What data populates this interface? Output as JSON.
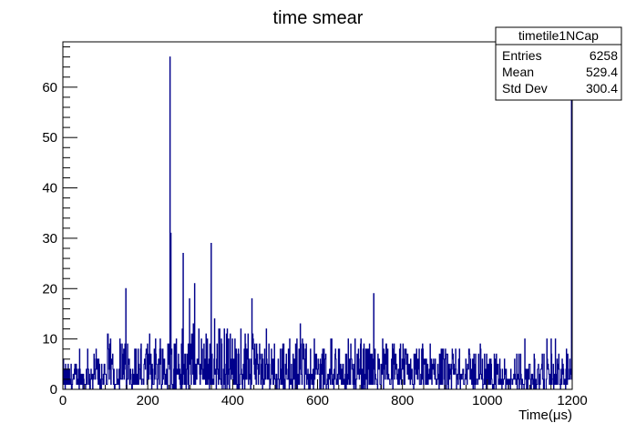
{
  "chart_data": {
    "type": "bar",
    "title": "time smear",
    "xlabel": "Time(μs)",
    "ylabel": "",
    "xlim": [
      0,
      1200
    ],
    "ylim": [
      0,
      69
    ],
    "grid": false,
    "x_ticks": [
      0,
      200,
      400,
      600,
      800,
      1000,
      1200
    ],
    "y_ticks": [
      0,
      10,
      20,
      30,
      40,
      50,
      60
    ],
    "bin_width": 1,
    "stats_box": {
      "name": "timetile1NCap",
      "rows": [
        {
          "label": "Entries",
          "value": "6258"
        },
        {
          "label": "Mean",
          "value": "529.4"
        },
        {
          "label": "Std Dev",
          "value": "300.4"
        }
      ]
    },
    "series": [
      {
        "color": "#00008b",
        "description": "histogram of counts per bin, noisy baseline ~0-10 with spikes",
        "peaks": [
          {
            "x": 148,
            "y": 20
          },
          {
            "x": 252,
            "y": 66
          },
          {
            "x": 254,
            "y": 31
          },
          {
            "x": 283,
            "y": 27
          },
          {
            "x": 310,
            "y": 21
          },
          {
            "x": 349,
            "y": 29
          },
          {
            "x": 445,
            "y": 18
          },
          {
            "x": 732,
            "y": 19
          },
          {
            "x": 1198,
            "y": 60
          }
        ],
        "envelope": [
          {
            "x_from": 0,
            "x_to": 50,
            "level": 2
          },
          {
            "x_from": 50,
            "x_to": 100,
            "level": 5
          },
          {
            "x_from": 100,
            "x_to": 200,
            "level": 7
          },
          {
            "x_from": 200,
            "x_to": 300,
            "level": 9
          },
          {
            "x_from": 300,
            "x_to": 360,
            "level": 10
          },
          {
            "x_from": 360,
            "x_to": 460,
            "level": 9
          },
          {
            "x_from": 460,
            "x_to": 600,
            "level": 7
          },
          {
            "x_from": 600,
            "x_to": 800,
            "level": 6
          },
          {
            "x_from": 800,
            "x_to": 1000,
            "level": 5
          },
          {
            "x_from": 1000,
            "x_to": 1200,
            "level": 4
          }
        ]
      }
    ]
  }
}
